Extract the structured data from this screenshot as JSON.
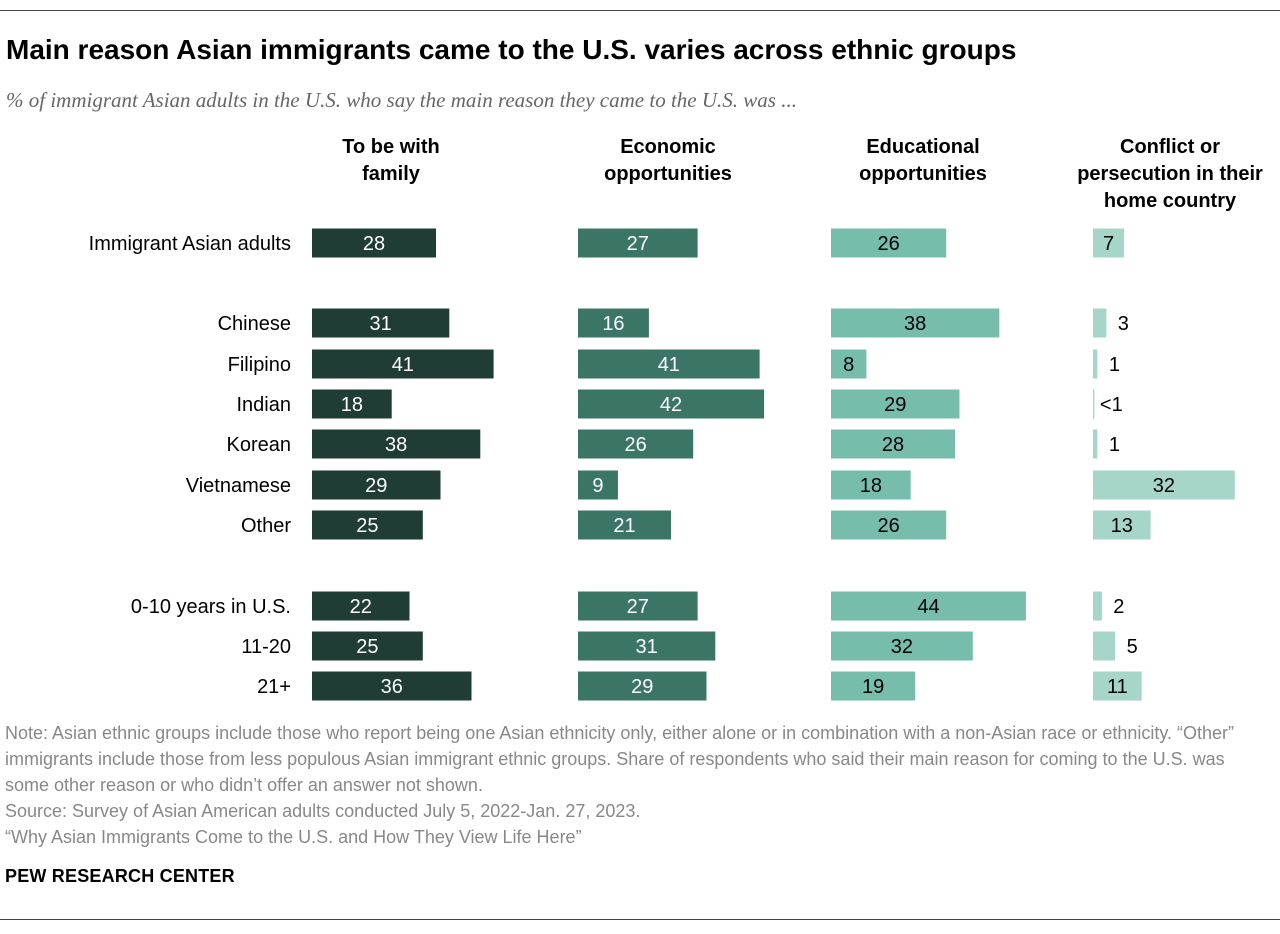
{
  "title": "Main reason Asian immigrants came to the U.S. varies across ethnic groups",
  "subtitle": "% of immigrant Asian adults in the U.S. who say the main reason they came to the U.S. was ...",
  "notes": {
    "note": "Note: Asian ethnic groups include those who report being one Asian ethnicity only, either alone or in combination with a non-Asian race or ethnicity. “Other” immigrants include those from less populous Asian immigrant ethnic groups. Share of respondents who said their main reason for coming to the U.S. was some other reason or who didn’t offer an answer not shown.",
    "source": "Source: Survey of Asian American adults conducted July 5, 2022-Jan. 27, 2023.",
    "report": "“Why Asian Immigrants Come to the U.S. and How They View Life Here”"
  },
  "brand": "PEW RESEARCH CENTER",
  "chart_data": {
    "type": "bar",
    "orientation": "horizontal",
    "layout": "small-multiples",
    "unit": "%",
    "categories": [
      "Immigrant Asian adults",
      "Chinese",
      "Filipino",
      "Indian",
      "Korean",
      "Vietnamese",
      "Other",
      "0-10 years in U.S.",
      "11-20",
      "21+"
    ],
    "groups": [
      [
        "Immigrant Asian adults"
      ],
      [
        "Chinese",
        "Filipino",
        "Indian",
        "Korean",
        "Vietnamese",
        "Other"
      ],
      [
        "0-10 years in U.S.",
        "11-20",
        "21+"
      ]
    ],
    "series": [
      {
        "name": "To be with family",
        "color": "#1f3c35",
        "values": [
          28,
          31,
          41,
          18,
          38,
          29,
          25,
          22,
          25,
          36
        ],
        "labels": [
          "28",
          "31",
          "41",
          "18",
          "38",
          "29",
          "25",
          "22",
          "25",
          "36"
        ]
      },
      {
        "name": "Economic opportunities",
        "color": "#3a7566",
        "values": [
          27,
          16,
          41,
          42,
          26,
          9,
          21,
          27,
          31,
          29
        ],
        "labels": [
          "27",
          "16",
          "41",
          "42",
          "26",
          "9",
          "21",
          "27",
          "31",
          "29"
        ]
      },
      {
        "name": "Educational opportunities",
        "color": "#77bdac",
        "values": [
          26,
          38,
          8,
          29,
          28,
          18,
          26,
          44,
          32,
          19
        ],
        "labels": [
          "26",
          "38",
          "8",
          "29",
          "28",
          "18",
          "26",
          "44",
          "32",
          "19"
        ]
      },
      {
        "name": "Conflict or persecution in their home country",
        "color": "#a6d5ca",
        "values": [
          7,
          3,
          1,
          0.3,
          1,
          32,
          13,
          2,
          5,
          11
        ],
        "labels": [
          "7",
          "3",
          "1",
          "<1",
          "1",
          "32",
          "13",
          "2",
          "5",
          "11"
        ]
      }
    ],
    "headers": [
      [
        "To be with",
        "family"
      ],
      [
        "Economic",
        "opportunities"
      ],
      [
        "Educational",
        "opportunities"
      ],
      [
        "Conflict or",
        "persecution in their",
        "home country"
      ]
    ],
    "grid": false,
    "legend": "none"
  }
}
